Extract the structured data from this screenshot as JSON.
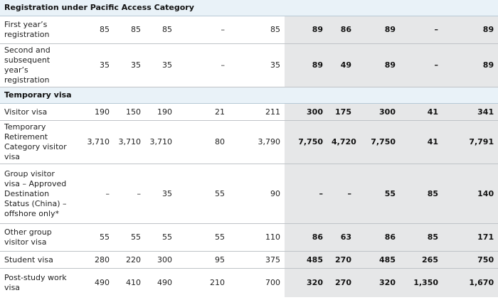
{
  "sections": {
    "pacific": "Registration under Pacific Access Category",
    "temporary": "Temporary visa"
  },
  "rows": [
    {
      "label": "First year’s registration",
      "old": [
        "85",
        "85",
        "85",
        "–",
        "85"
      ],
      "new": [
        "89",
        "86",
        "89",
        "–",
        "89"
      ]
    },
    {
      "label": "Second and subsequent year’s registration",
      "old": [
        "35",
        "35",
        "35",
        "–",
        "35"
      ],
      "new": [
        "89",
        "49",
        "89",
        "–",
        "89"
      ]
    },
    {
      "label": "Visitor visa",
      "old": [
        "190",
        "150",
        "190",
        "21",
        "211"
      ],
      "new": [
        "300",
        "175",
        "300",
        "41",
        "341"
      ]
    },
    {
      "label": "Temporary Retirement Category visitor visa",
      "old": [
        "3,710",
        "3,710",
        "3,710",
        "80",
        "3,790"
      ],
      "new": [
        "7,750",
        "4,720",
        "7,750",
        "41",
        "7,791"
      ]
    },
    {
      "label": "Group visitor visa – Approved Destination Status (China) – offshore only*",
      "old": [
        "–",
        "–",
        "35",
        "55",
        "90"
      ],
      "new": [
        "–",
        "–",
        "55",
        "85",
        "140"
      ]
    },
    {
      "label": "Other group visitor visa",
      "old": [
        "55",
        "55",
        "55",
        "55",
        "110"
      ],
      "new": [
        "86",
        "63",
        "86",
        "85",
        "171"
      ]
    },
    {
      "label": "Student visa",
      "old": [
        "280",
        "220",
        "300",
        "95",
        "375"
      ],
      "new": [
        "485",
        "270",
        "485",
        "265",
        "750"
      ]
    },
    {
      "label": "Post-study work visa",
      "old": [
        "490",
        "410",
        "490",
        "210",
        "700"
      ],
      "new": [
        "320",
        "270",
        "320",
        "1,350",
        "1,670"
      ]
    }
  ]
}
